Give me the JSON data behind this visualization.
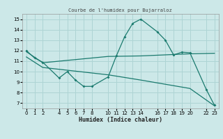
{
  "title": "Courbe de l'humidex pour Bujarraloz",
  "xlabel": "Humidex (Indice chaleur)",
  "bg_color": "#cce8e8",
  "grid_color": "#aed4d4",
  "line_color": "#1a7a6e",
  "xticks": [
    0,
    1,
    2,
    4,
    5,
    6,
    7,
    8,
    10,
    11,
    12,
    13,
    14,
    16,
    17,
    18,
    19,
    20,
    22,
    23
  ],
  "ylim": [
    6.5,
    15.5
  ],
  "xlim": [
    -0.5,
    23.5
  ],
  "yticks": [
    7,
    8,
    9,
    10,
    11,
    12,
    13,
    14,
    15
  ],
  "line1_x": [
    0,
    1,
    2,
    4,
    5,
    6,
    7,
    8,
    10,
    11,
    12,
    13,
    14,
    16,
    17,
    18,
    19,
    20,
    22,
    23
  ],
  "line1_y": [
    12.0,
    11.3,
    10.9,
    9.4,
    10.0,
    9.2,
    8.6,
    8.6,
    9.5,
    11.5,
    13.3,
    14.6,
    15.0,
    13.8,
    13.0,
    11.6,
    11.85,
    11.8,
    8.3,
    6.8
  ],
  "line2_x": [
    0,
    2,
    10,
    14,
    20,
    23
  ],
  "line2_y": [
    11.9,
    10.85,
    11.45,
    11.5,
    11.7,
    11.75
  ],
  "line3_x": [
    0,
    2,
    10,
    14,
    20,
    23
  ],
  "line3_y": [
    11.4,
    10.4,
    9.7,
    9.2,
    8.4,
    6.75
  ]
}
